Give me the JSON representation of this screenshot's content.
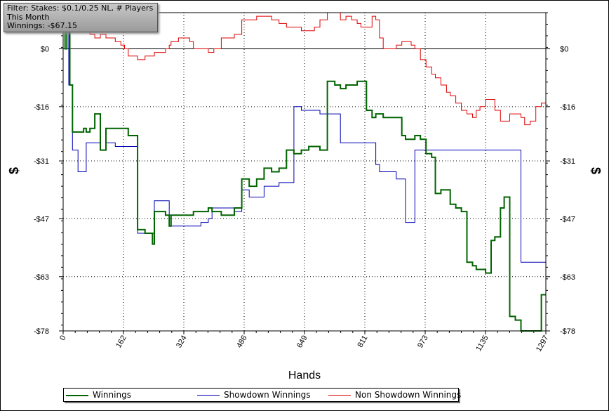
{
  "filter": {
    "line1": "Filter: Stakes: $0.1/0.25 NL, # Players",
    "line2": "This Month",
    "line3": "Winnings: -$67.15"
  },
  "chart_data": {
    "type": "line",
    "xlabel": "Hands",
    "ylabel_left": "$",
    "ylabel_right": "$",
    "xlim": [
      0,
      1297
    ],
    "ylim": [
      -78,
      10
    ],
    "x_tick_labels": [
      "0",
      "162",
      "324",
      "486",
      "649",
      "811",
      "973",
      "1135",
      "1297"
    ],
    "y_tick_labels": [
      "$0",
      "-$16",
      "-$31",
      "-$47",
      "-$63",
      "-$78"
    ],
    "y_tick_values": [
      0,
      -16,
      -31,
      -47,
      -63,
      -78
    ],
    "grid": true,
    "legend_position": "bottom",
    "series": [
      {
        "name": "Winnings",
        "color": "#006400",
        "x": [
          0,
          5,
          10,
          15,
          18,
          25,
          40,
          55,
          62,
          72,
          85,
          100,
          115,
          140,
          155,
          165,
          175,
          200,
          220,
          240,
          245,
          275,
          285,
          290,
          310,
          340,
          350,
          370,
          390,
          400,
          405,
          425,
          440,
          460,
          480,
          500,
          520,
          540,
          560,
          580,
          600,
          620,
          640,
          660,
          675,
          690,
          710,
          730,
          745,
          760,
          775,
          790,
          800,
          815,
          830,
          840,
          850,
          860,
          875,
          895,
          910,
          920,
          935,
          945,
          960,
          975,
          990,
          1000,
          1015,
          1030,
          1040,
          1055,
          1070,
          1085,
          1100,
          1110,
          1120,
          1135,
          1150,
          1160,
          1175,
          1185,
          1200,
          1215,
          1230,
          1240,
          1255,
          1270,
          1285,
          1297
        ],
        "y": [
          5,
          0,
          5,
          8,
          -10,
          -23,
          -23,
          -22,
          -23,
          -22,
          -18,
          -28,
          -22,
          -22,
          -22,
          -22,
          -24,
          -50,
          -51,
          -54,
          -45,
          -46,
          -49,
          -46,
          -46,
          -46,
          -45,
          -45,
          -44,
          -45,
          -45,
          -46,
          -46,
          -44,
          -36,
          -38,
          -36,
          -33,
          -34,
          -33,
          -28,
          -29,
          -28,
          -27,
          -27,
          -28,
          -9,
          -10,
          -11,
          -10,
          -10,
          -9,
          -9,
          -17,
          -19,
          -18,
          -18,
          -19,
          -19,
          -19,
          -24,
          -25,
          -25,
          -24,
          -25,
          -29,
          -30,
          -40,
          -39,
          -39,
          -43,
          -44,
          -45,
          -59,
          -60,
          -61,
          -61,
          -62,
          -53,
          -52,
          -44,
          -41,
          -74,
          -75,
          -78,
          -78,
          -78,
          -78,
          -68,
          -68
        ]
      },
      {
        "name": "Showdown Winnings",
        "color": "#0000b4",
        "x": [
          0,
          10,
          15,
          25,
          40,
          55,
          62,
          72,
          85,
          100,
          115,
          140,
          155,
          165,
          175,
          200,
          220,
          240,
          245,
          275,
          285,
          290,
          310,
          340,
          350,
          370,
          390,
          400,
          405,
          425,
          440,
          460,
          480,
          500,
          520,
          540,
          560,
          580,
          600,
          620,
          640,
          660,
          675,
          690,
          710,
          730,
          745,
          760,
          775,
          790,
          800,
          815,
          830,
          840,
          850,
          860,
          875,
          895,
          910,
          920,
          935,
          945,
          960,
          975,
          990,
          1000,
          1015,
          1030,
          1040,
          1055,
          1070,
          1085,
          1100,
          1110,
          1120,
          1135,
          1150,
          1160,
          1175,
          1185,
          1200,
          1215,
          1230,
          1240,
          1255,
          1270,
          1285,
          1297
        ],
        "y": [
          5,
          8,
          -10,
          -28,
          -34,
          -34,
          -26,
          -26,
          -26,
          -28,
          -26,
          -27,
          -27,
          -27,
          -27,
          -51,
          -51,
          -51,
          -42,
          -42,
          -46,
          -49,
          -49,
          -49,
          -49,
          -48,
          -47,
          -44,
          -44,
          -44,
          -44,
          -45,
          -39,
          -41,
          -41,
          -38,
          -38,
          -37,
          -37,
          -16,
          -17,
          -17,
          -17,
          -18,
          -18,
          -18,
          -26,
          -26,
          -26,
          -26,
          -26,
          -26,
          -26,
          -32,
          -34,
          -34,
          -34,
          -36,
          -36,
          -48,
          -48,
          -28,
          -28,
          -28,
          -28,
          -28,
          -28,
          -28,
          -28,
          -28,
          -28,
          -28,
          -28,
          -28,
          -28,
          -28,
          -28,
          -28,
          -28,
          -28,
          -28,
          -28,
          -59,
          -59,
          -59,
          -59,
          -59,
          -59
        ]
      },
      {
        "name": "Non Showdown Winnings",
        "color": "#dd0000",
        "x": [
          0,
          15,
          25,
          40,
          55,
          62,
          72,
          85,
          100,
          115,
          140,
          155,
          165,
          175,
          200,
          220,
          240,
          245,
          275,
          285,
          290,
          310,
          340,
          350,
          370,
          390,
          400,
          405,
          425,
          440,
          460,
          480,
          500,
          520,
          540,
          560,
          580,
          600,
          620,
          640,
          660,
          675,
          690,
          710,
          730,
          745,
          760,
          775,
          790,
          800,
          815,
          830,
          840,
          850,
          860,
          875,
          895,
          910,
          920,
          935,
          945,
          960,
          975,
          990,
          1000,
          1015,
          1030,
          1040,
          1055,
          1070,
          1085,
          1100,
          1110,
          1120,
          1135,
          1150,
          1160,
          1175,
          1185,
          1200,
          1215,
          1230,
          1240,
          1255,
          1270,
          1285,
          1297
        ],
        "y": [
          5,
          5,
          6,
          7,
          5,
          5,
          4,
          3,
          4,
          3,
          2,
          1,
          0,
          -2,
          -3,
          -2,
          -2,
          -1,
          0,
          1,
          2,
          3,
          2,
          0,
          0,
          -1,
          -1,
          0,
          3,
          3,
          4,
          8,
          8,
          9,
          9,
          8,
          7,
          6,
          6,
          5,
          5,
          6,
          8,
          10,
          10,
          8,
          9,
          8,
          7,
          6,
          6,
          9,
          8,
          3,
          0,
          0,
          1,
          2,
          2,
          1,
          0,
          -3,
          -5,
          -7,
          -8,
          -10,
          -12,
          -13,
          -15,
          -17,
          -18,
          -19,
          -17,
          -16,
          -14,
          -14,
          -17,
          -20,
          -20,
          -18,
          -18,
          -19,
          -21,
          -20,
          -16,
          -15,
          -8
        ]
      }
    ]
  }
}
